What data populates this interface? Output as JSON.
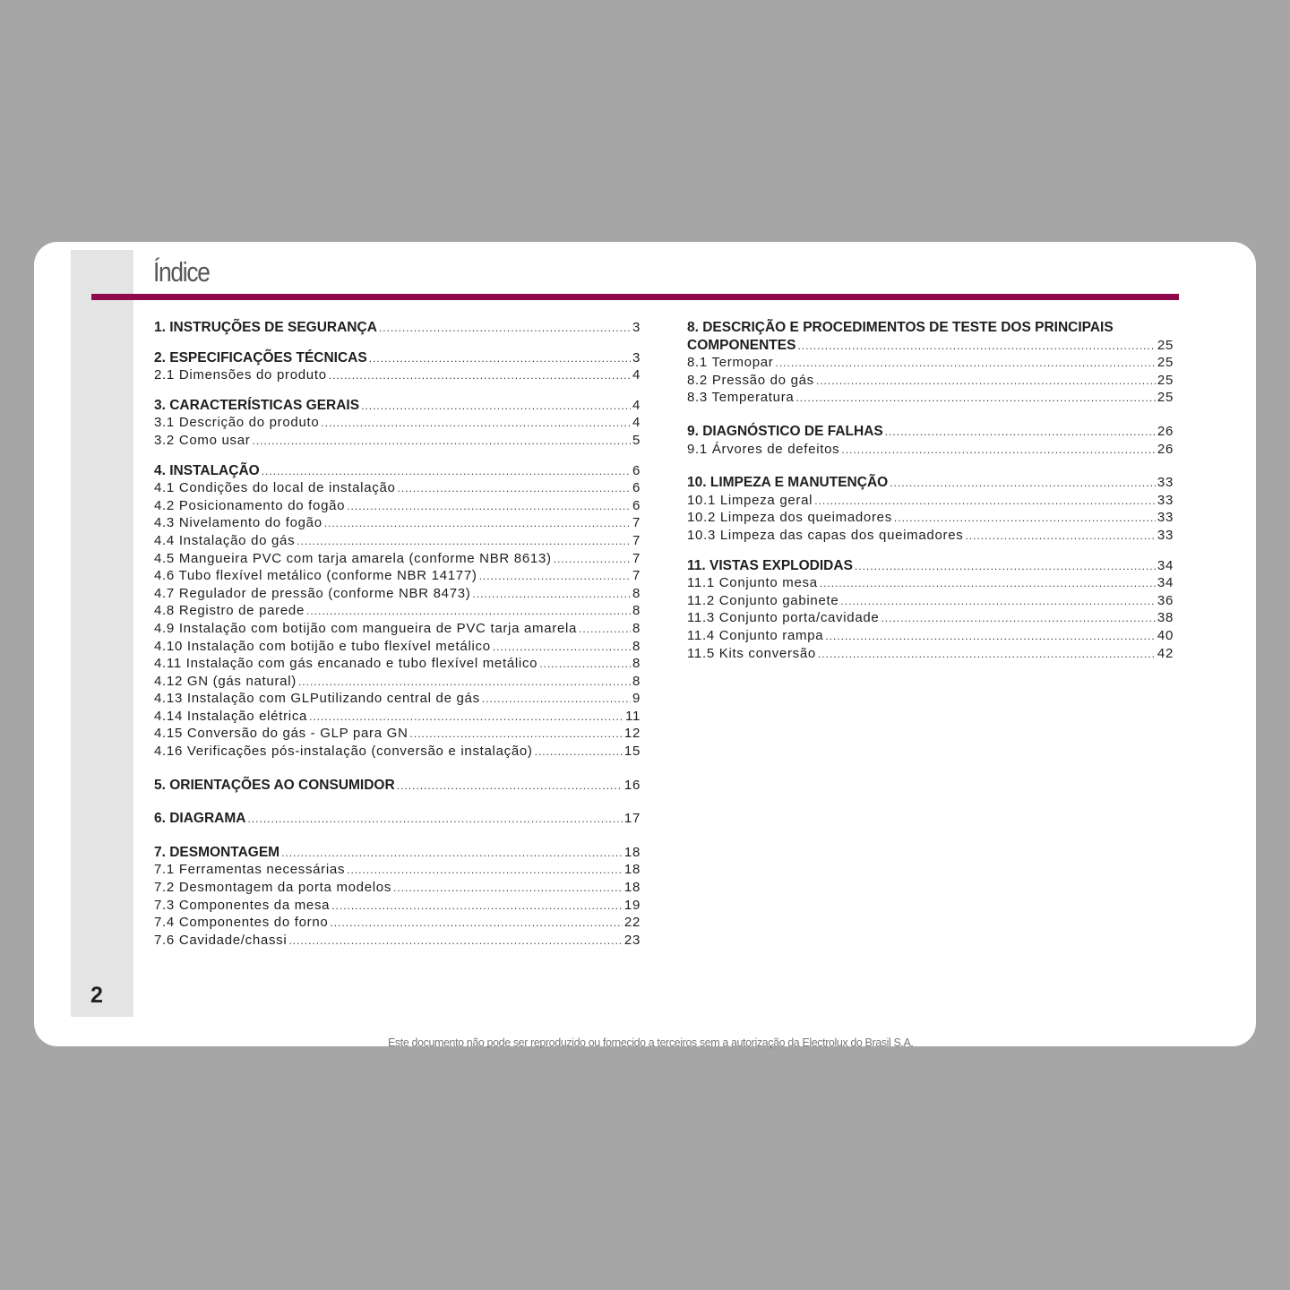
{
  "title": "Índice",
  "page_number": "2",
  "footer": "Este documento não pode ser reproduzido ou fornecido a terceiros sem a autorização da Electrolux do Brasil S.A.",
  "accent_color": "#8e0a4a",
  "left_column": [
    {
      "heading": "1. INSTRUÇÕES DE SEGURANÇA",
      "page": "3",
      "items": []
    },
    {
      "heading": "2. ESPECIFICAÇÕES TÉCNICAS",
      "page": "3",
      "items": [
        {
          "label": "2.1 Dimensões do produto",
          "page": "4"
        }
      ]
    },
    {
      "heading": "3. CARACTERÍSTICAS GERAIS",
      "page": "4",
      "items": [
        {
          "label": "3.1 Descrição do produto",
          "page": "4"
        },
        {
          "label": "3.2 Como usar",
          "page": "5"
        }
      ]
    },
    {
      "heading": "4. INSTALAÇÃO",
      "page": "6",
      "items": [
        {
          "label": "4.1 Condições do local de instalação",
          "page": "6"
        },
        {
          "label": "4.2 Posicionamento do fogão",
          "page": "6"
        },
        {
          "label": "4.3 Nivelamento do fogão",
          "page": "7"
        },
        {
          "label": "4.4 Instalação do gás",
          "page": "7"
        },
        {
          "label": "4.5 Mangueira PVC com tarja amarela (conforme NBR 8613)",
          "page": "7"
        },
        {
          "label": "4.6 Tubo flexível metálico (conforme NBR 14177)",
          "page": "7"
        },
        {
          "label": "4.7 Regulador de pressão (conforme NBR 8473)",
          "page": "8"
        },
        {
          "label": "4.8 Registro de parede",
          "page": "8"
        },
        {
          "label": "4.9 Instalação com botijão com mangueira de PVC tarja amarela",
          "page": "8"
        },
        {
          "label": "4.10 Instalação com botijão e tubo flexível metálico",
          "page": "8"
        },
        {
          "label": "4.11 Instalação com gás encanado e tubo flexível metálico",
          "page": "8"
        },
        {
          "label": "4.12 GN (gás natural)",
          "page": "8"
        },
        {
          "label": "4.13 Instalação com GLPutilizando central de gás",
          "page": "9"
        },
        {
          "label": "4.14 Instalação elétrica",
          "page": "11"
        },
        {
          "label": "4.15 Conversão do gás - GLP para GN",
          "page": "12"
        },
        {
          "label": "4.16 Verificações pós-instalação (conversão e instalação)",
          "page": "15"
        }
      ]
    },
    {
      "heading": "5. ORIENTAÇÕES AO CONSUMIDOR",
      "page": "16",
      "items": []
    },
    {
      "heading": "6. DIAGRAMA",
      "page": "17",
      "items": []
    },
    {
      "heading": "7. DESMONTAGEM",
      "page": "18",
      "items": [
        {
          "label": "7.1 Ferramentas necessárias",
          "page": "18"
        },
        {
          "label": "7.2 Desmontagem da porta modelos",
          "page": "18"
        },
        {
          "label": "7.3 Componentes da mesa",
          "page": "19"
        },
        {
          "label": "7.4 Componentes do forno",
          "page": "22"
        },
        {
          "label": "7.6 Cavidade/chassi",
          "page": "23"
        }
      ]
    }
  ],
  "right_column": [
    {
      "heading_line1": "8. DESCRIÇÃO E PROCEDIMENTOS DE TESTE DOS PRINCIPAIS",
      "heading": "COMPONENTES",
      "page": "25",
      "items": [
        {
          "label": "8.1 Termopar",
          "page": "25"
        },
        {
          "label": "8.2 Pressão do gás",
          "page": "25"
        },
        {
          "label": "8.3 Temperatura",
          "page": "25"
        }
      ]
    },
    {
      "heading": "9. DIAGNÓSTICO DE FALHAS",
      "page": "26",
      "items": [
        {
          "label": "9.1 Árvores de defeitos",
          "page": "26"
        }
      ]
    },
    {
      "heading": "10. LIMPEZA E MANUTENÇÃO",
      "page": "33",
      "items": [
        {
          "label": "10.1 Limpeza geral",
          "page": "33"
        },
        {
          "label": "10.2 Limpeza dos queimadores",
          "page": "33"
        },
        {
          "label": "10.3 Limpeza das capas dos queimadores",
          "page": "33"
        }
      ]
    },
    {
      "heading": "11. VISTAS EXPLODIDAS",
      "page": "34",
      "items": [
        {
          "label": "11.1 Conjunto mesa",
          "page": "34"
        },
        {
          "label": "11.2 Conjunto gabinete",
          "page": "36"
        },
        {
          "label": "11.3 Conjunto porta/cavidade",
          "page": "38"
        },
        {
          "label": "11.4 Conjunto rampa",
          "page": "40"
        },
        {
          "label": "11.5 Kits conversão",
          "page": "42"
        }
      ]
    }
  ]
}
